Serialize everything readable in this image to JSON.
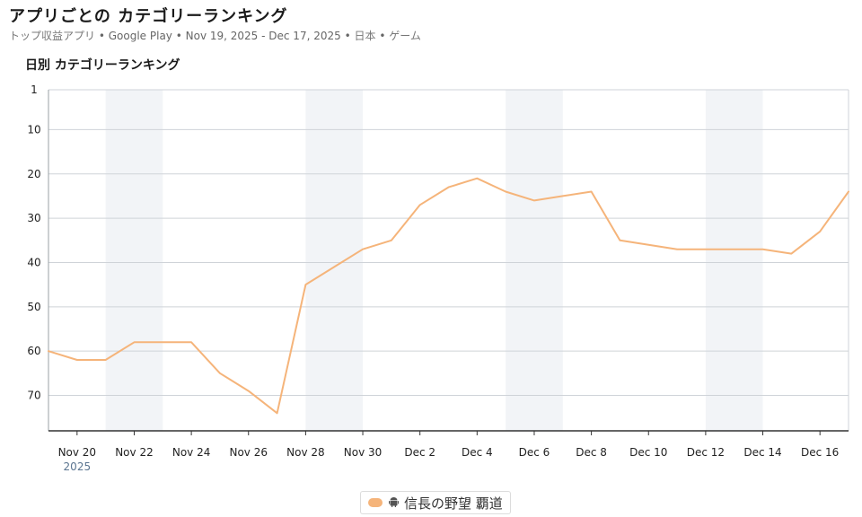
{
  "header": {
    "title": "アプリごとの カテゴリーランキング",
    "subtitle_collection": "トップ収益アプリ",
    "subtitle_store": "Google Play",
    "subtitle_range": "Nov 19, 2025 - Dec 17, 2025",
    "subtitle_country": "日本",
    "subtitle_category": "ゲーム",
    "separator": "•"
  },
  "legend": {
    "platform_icon": "android-icon",
    "app_name": "信長の野望 覇道"
  },
  "chart_data": {
    "type": "line",
    "title": "日別 カテゴリーランキング",
    "xlabel": "",
    "ylabel": "",
    "y_reversed": true,
    "ylim": [
      1,
      78
    ],
    "yticks": [
      1,
      10,
      20,
      30,
      40,
      50,
      60,
      70
    ],
    "x_start": "2025-11-19",
    "x_end": "2025-12-17",
    "xticks": [
      "Nov 20",
      "Nov 22",
      "Nov 24",
      "Nov 26",
      "Nov 28",
      "Nov 30",
      "Dec 2",
      "Dec 4",
      "Dec 6",
      "Dec 8",
      "Dec 10",
      "Dec 12",
      "Dec 14",
      "Dec 16"
    ],
    "xtick_year": "2025",
    "weekend_bands": [
      [
        "Nov 21",
        "Nov 22"
      ],
      [
        "Nov 28",
        "Nov 29"
      ],
      [
        "Dec 5",
        "Dec 6"
      ],
      [
        "Dec 12",
        "Dec 13"
      ]
    ],
    "grid": true,
    "legend_position": "bottom-center",
    "series": [
      {
        "name": "信長の野望 覇道",
        "color": "#f5b47a",
        "x": [
          "Nov 19",
          "Nov 20",
          "Nov 21",
          "Nov 22",
          "Nov 23",
          "Nov 24",
          "Nov 25",
          "Nov 26",
          "Nov 27",
          "Nov 28",
          "Nov 29",
          "Nov 30",
          "Dec 1",
          "Dec 2",
          "Dec 3",
          "Dec 4",
          "Dec 5",
          "Dec 6",
          "Dec 7",
          "Dec 8",
          "Dec 9",
          "Dec 10",
          "Dec 11",
          "Dec 12",
          "Dec 13",
          "Dec 14",
          "Dec 15",
          "Dec 16",
          "Dec 17"
        ],
        "values": [
          60,
          62,
          62,
          58,
          58,
          58,
          65,
          69,
          74,
          45,
          41,
          37,
          35,
          27,
          23,
          21,
          24,
          26,
          25,
          24,
          35,
          36,
          37,
          37,
          37,
          37,
          38,
          33,
          24
        ]
      }
    ]
  }
}
